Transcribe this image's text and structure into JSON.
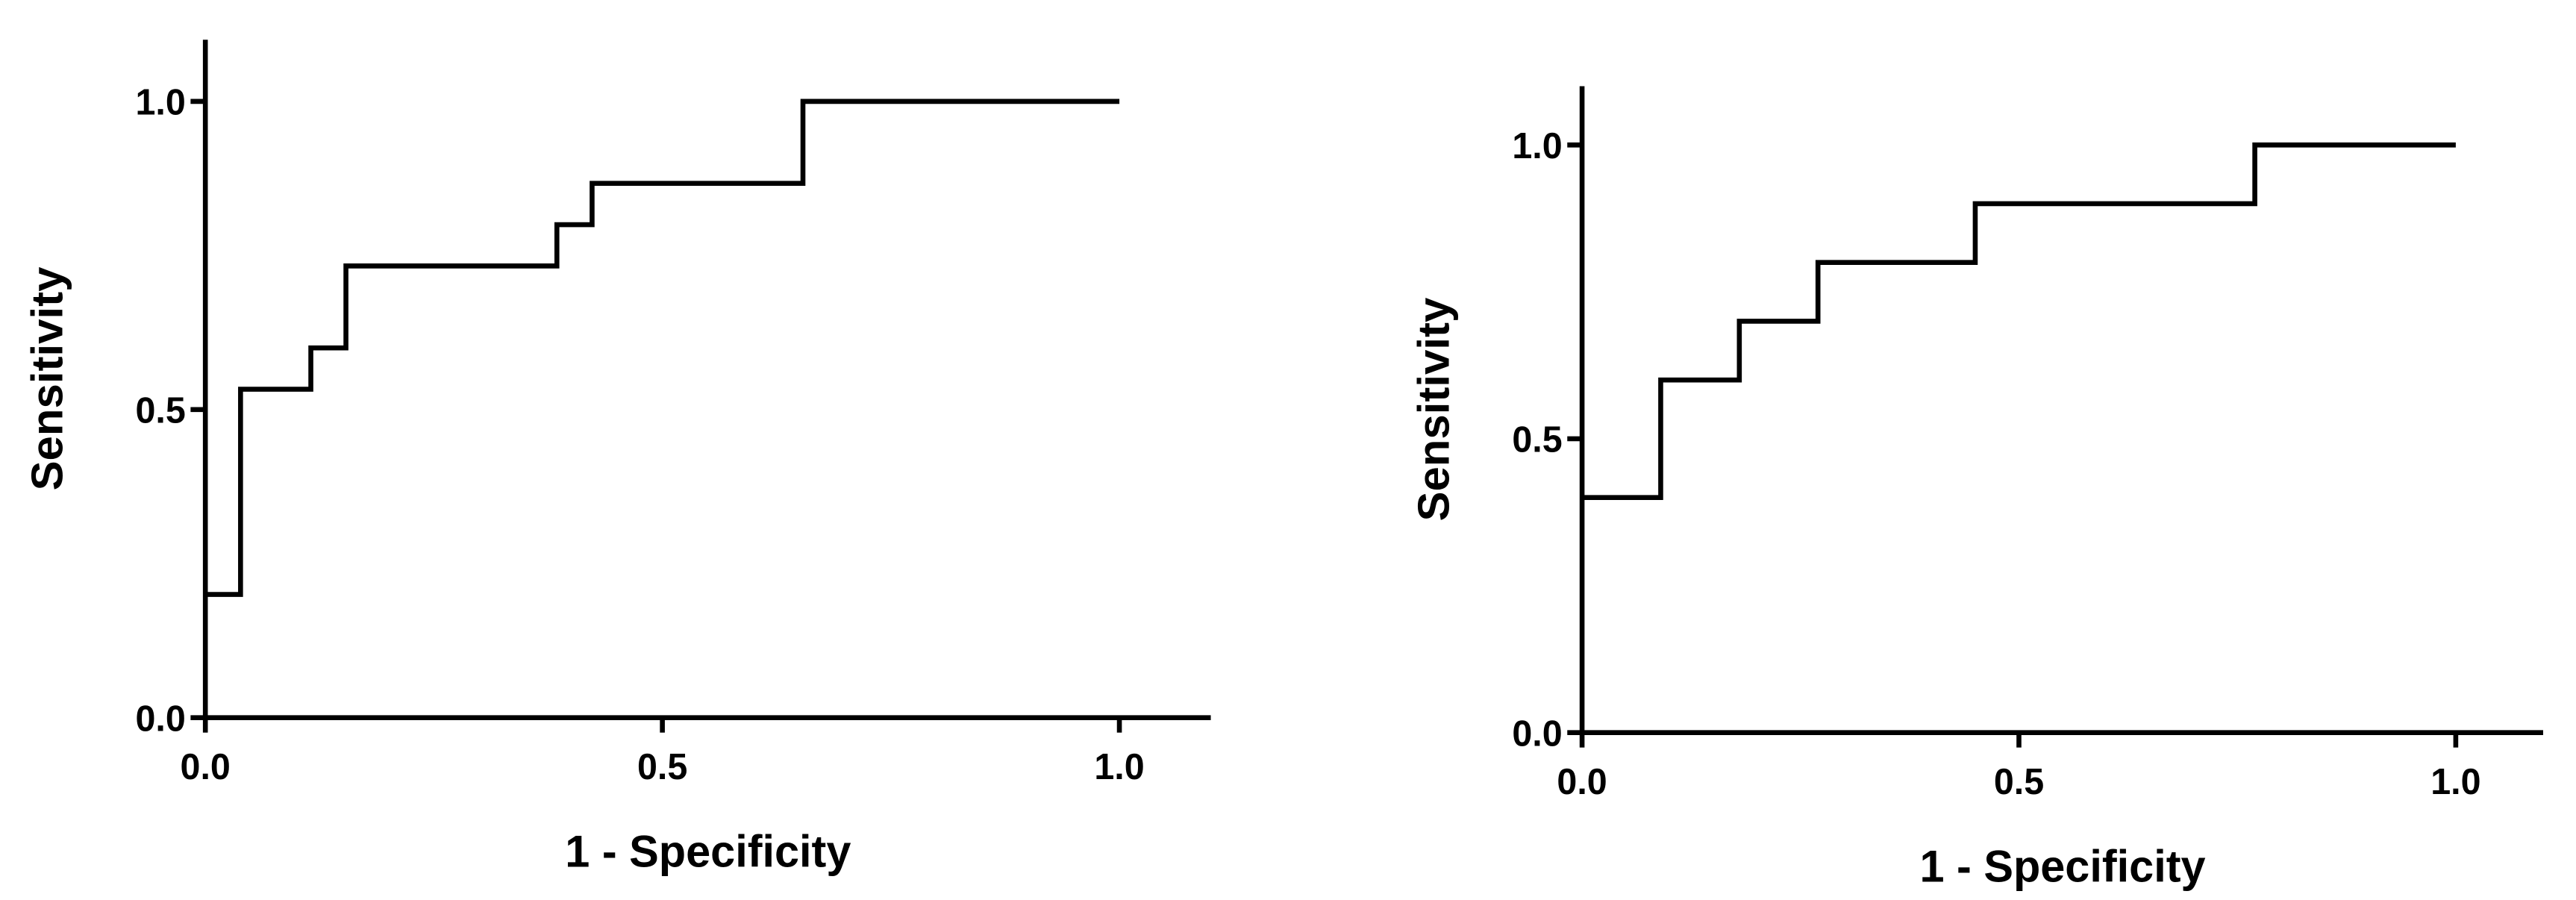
{
  "chart_data": [
    {
      "type": "line",
      "x_label": "1 - Specificity",
      "y_label": "Sensitivity",
      "x": [
        0,
        0.0385,
        0.0385,
        0.1154,
        0.1154,
        0.1538,
        0.1538,
        0.3846,
        0.3846,
        0.4231,
        0.4231,
        0.6538,
        0.6538,
        1.0
      ],
      "values": [
        0.2,
        0.2,
        0.533,
        0.533,
        0.6,
        0.6,
        0.733,
        0.733,
        0.8,
        0.8,
        0.867,
        0.867,
        1.0,
        1.0
      ],
      "color": "#000000",
      "xlim": [
        0,
        1.1
      ],
      "ylim": [
        0,
        1.1
      ],
      "xticks": [
        {
          "value": 0,
          "label": "0.0"
        },
        0.5,
        {
          "value": 1,
          "label": "1.0"
        }
      ],
      "yticks": [
        {
          "value": 0,
          "label": "0.0"
        },
        0.5,
        {
          "value": 1,
          "label": "1.0"
        }
      ],
      "grid": false
    },
    {
      "type": "line",
      "x_label": "1 - Specificity",
      "y_label": "Sensitivity",
      "x": [
        0,
        0.09,
        0.09,
        0.18,
        0.18,
        0.27,
        0.27,
        0.45,
        0.45,
        0.77,
        0.77,
        1.0
      ],
      "values": [
        0.4,
        0.4,
        0.6,
        0.6,
        0.7,
        0.7,
        0.8,
        0.8,
        0.9,
        0.9,
        1.0,
        1.0
      ],
      "color": "#000000",
      "xlim": [
        0,
        1.1
      ],
      "ylim": [
        0,
        1.1
      ],
      "xticks": [
        {
          "value": 0,
          "label": "0.0"
        },
        0.5,
        {
          "value": 1,
          "label": "1.0"
        }
      ],
      "yticks": [
        {
          "value": 0,
          "label": "0.0"
        },
        0.5,
        {
          "value": 1,
          "label": "1.0"
        }
      ],
      "grid": false
    }
  ]
}
